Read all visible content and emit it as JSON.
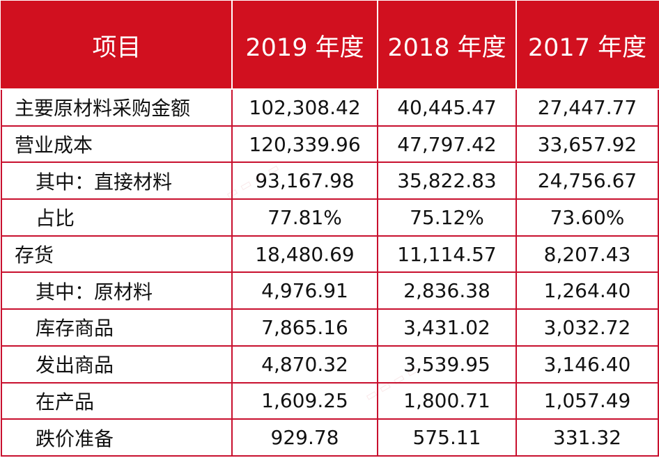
{
  "table": {
    "headers": [
      "项目",
      "2019 年度",
      "2018 年度",
      "2017 年度"
    ],
    "rows": [
      {
        "label": "主要原材料采购金额",
        "indent": false,
        "values": [
          "102,308.42",
          "40,445.47",
          "27,447.77"
        ]
      },
      {
        "label": "营业成本",
        "indent": false,
        "values": [
          "120,339.96",
          "47,797.42",
          "33,657.92"
        ]
      },
      {
        "label": "其中：直接材料",
        "indent": true,
        "values": [
          "93,167.98",
          "35,822.83",
          "24,756.67"
        ]
      },
      {
        "label": "占比",
        "indent": true,
        "values": [
          "77.81%",
          "75.12%",
          "73.60%"
        ]
      },
      {
        "label": "存货",
        "indent": false,
        "values": [
          "18,480.69",
          "11,114.57",
          "8,207.43"
        ]
      },
      {
        "label": "其中：原材料",
        "indent": true,
        "values": [
          "4,976.91",
          "2,836.38",
          "1,264.40"
        ]
      },
      {
        "label": "库存商品",
        "indent": true,
        "values": [
          "7,865.16",
          "3,431.02",
          "3,032.72"
        ]
      },
      {
        "label": "发出商品",
        "indent": true,
        "values": [
          "4,870.32",
          "3,539.95",
          "3,146.40"
        ]
      },
      {
        "label": "在产品",
        "indent": true,
        "values": [
          "1,609.25",
          "1,800.71",
          "1,057.49"
        ]
      },
      {
        "label": "跌价准备",
        "indent": true,
        "values": [
          "929.78",
          "575.11",
          "331.32"
        ]
      }
    ]
  },
  "colors": {
    "header_bg": "#d1101f",
    "grid_line": "#c8102e",
    "header_text": "#ffffff",
    "body_text": "#111111"
  }
}
